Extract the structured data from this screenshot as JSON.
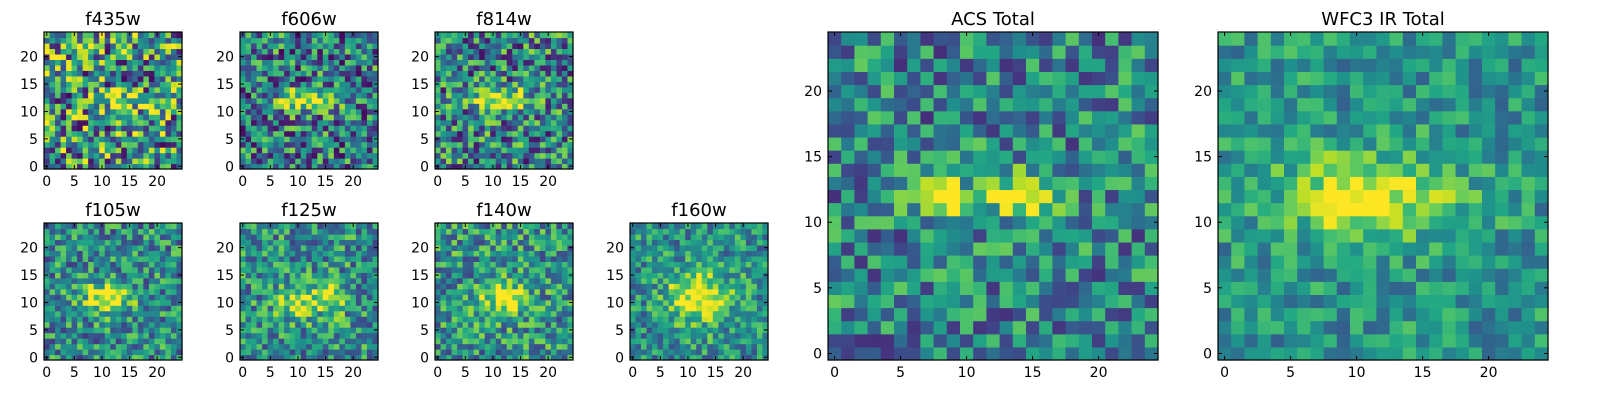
{
  "chart_data": [
    {
      "type": "heatmap",
      "title": "f435w",
      "xticks": [
        0,
        5,
        10,
        15,
        20
      ],
      "yticks": [
        0,
        5,
        10,
        15,
        20
      ],
      "xlim": [
        0,
        25
      ],
      "ylim": [
        0,
        25
      ],
      "colormap": "viridis",
      "grid": false
    },
    {
      "type": "heatmap",
      "title": "f606w",
      "xticks": [
        0,
        5,
        10,
        15,
        20
      ],
      "yticks": [
        0,
        5,
        10,
        15,
        20
      ],
      "xlim": [
        0,
        25
      ],
      "ylim": [
        0,
        25
      ],
      "colormap": "viridis",
      "grid": false
    },
    {
      "type": "heatmap",
      "title": "f814w",
      "xticks": [
        0,
        5,
        10,
        15,
        20
      ],
      "yticks": [
        0,
        5,
        10,
        15,
        20
      ],
      "xlim": [
        0,
        25
      ],
      "ylim": [
        0,
        25
      ],
      "colormap": "viridis",
      "grid": false
    },
    {
      "type": "heatmap",
      "title": "f105w",
      "xticks": [
        0,
        5,
        10,
        15,
        20
      ],
      "yticks": [
        0,
        5,
        10,
        15,
        20
      ],
      "xlim": [
        0,
        25
      ],
      "ylim": [
        0,
        25
      ],
      "colormap": "viridis",
      "grid": false
    },
    {
      "type": "heatmap",
      "title": "f125w",
      "xticks": [
        0,
        5,
        10,
        15,
        20
      ],
      "yticks": [
        0,
        5,
        10,
        15,
        20
      ],
      "xlim": [
        0,
        25
      ],
      "ylim": [
        0,
        25
      ],
      "colormap": "viridis",
      "grid": false
    },
    {
      "type": "heatmap",
      "title": "f140w",
      "xticks": [
        0,
        5,
        10,
        15,
        20
      ],
      "yticks": [
        0,
        5,
        10,
        15,
        20
      ],
      "xlim": [
        0,
        25
      ],
      "ylim": [
        0,
        25
      ],
      "colormap": "viridis",
      "grid": false
    },
    {
      "type": "heatmap",
      "title": "f160w",
      "xticks": [
        0,
        5,
        10,
        15,
        20
      ],
      "yticks": [
        0,
        5,
        10,
        15,
        20
      ],
      "xlim": [
        0,
        25
      ],
      "ylim": [
        0,
        25
      ],
      "colormap": "viridis",
      "grid": false
    },
    {
      "type": "heatmap",
      "title": "ACS Total",
      "xticks": [
        0,
        5,
        10,
        15,
        20
      ],
      "yticks": [
        0,
        5,
        10,
        15,
        20
      ],
      "xlim": [
        0,
        25
      ],
      "ylim": [
        0,
        25
      ],
      "colormap": "viridis",
      "grid": false
    },
    {
      "type": "heatmap",
      "title": "WFC3 IR Total",
      "xticks": [
        0,
        5,
        10,
        15,
        20
      ],
      "yticks": [
        0,
        5,
        10,
        15,
        20
      ],
      "xlim": [
        0,
        25
      ],
      "ylim": [
        0,
        25
      ],
      "colormap": "viridis",
      "grid": false
    }
  ]
}
